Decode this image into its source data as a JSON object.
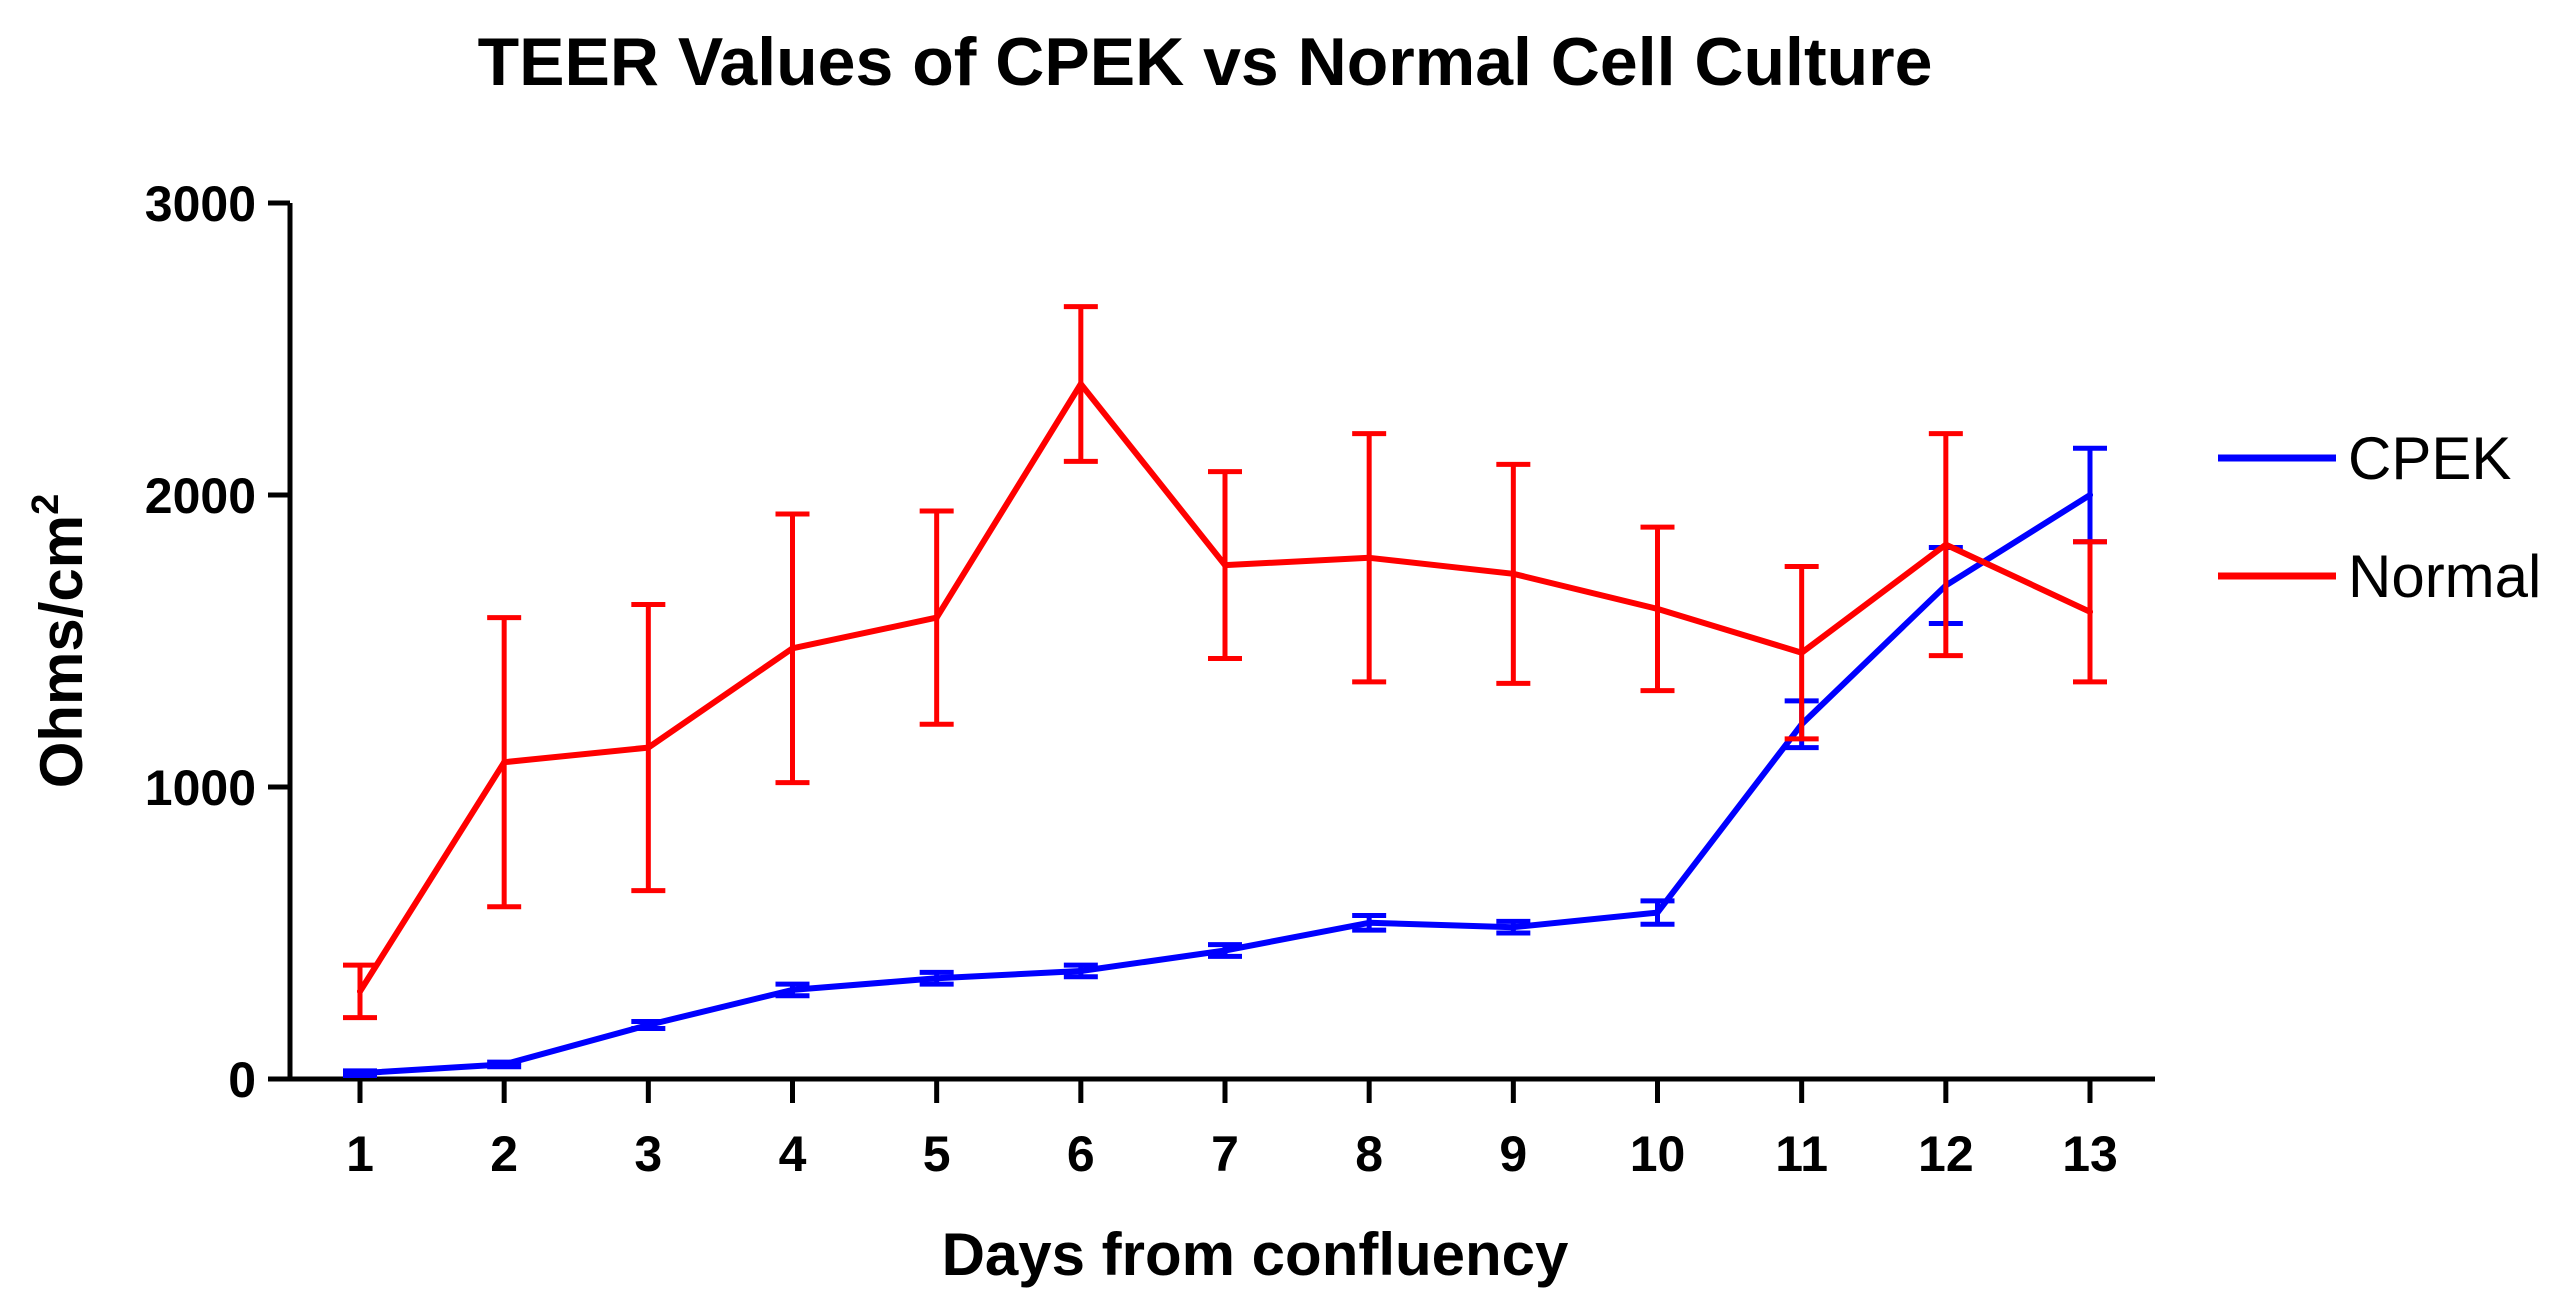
{
  "chart_data": {
    "type": "line",
    "title": "TEER Values of CPEK vs Normal Cell Culture",
    "xlabel": "Days from confluency",
    "ylabel": "Ohms/cm",
    "ylabel_superscript": "2",
    "x": [
      1,
      2,
      3,
      4,
      5,
      6,
      7,
      8,
      9,
      10,
      11,
      12,
      13
    ],
    "x_tick_labels": [
      "1",
      "2",
      "3",
      "4",
      "5",
      "6",
      "7",
      "8",
      "9",
      "10",
      "11",
      "12",
      "13"
    ],
    "ylim": [
      0,
      3000
    ],
    "y_ticks": [
      0,
      1000,
      2000,
      3000
    ],
    "y_tick_labels": [
      "0",
      "1000",
      "2000",
      "3000"
    ],
    "grid": false,
    "legend_position": "right",
    "series": [
      {
        "name": "CPEK",
        "color": "#0000ff",
        "values": [
          20,
          50,
          185,
          305,
          345,
          370,
          440,
          535,
          520,
          570,
          1215,
          1690,
          2000
        ],
        "error": [
          8,
          8,
          12,
          20,
          20,
          20,
          20,
          25,
          20,
          40,
          80,
          130,
          160
        ]
      },
      {
        "name": "Normal",
        "color": "#ff0000",
        "values": [
          300,
          1085,
          1135,
          1475,
          1580,
          2380,
          1760,
          1785,
          1730,
          1610,
          1460,
          1830,
          1600
        ],
        "error": [
          90,
          495,
          490,
          460,
          365,
          265,
          320,
          425,
          375,
          280,
          295,
          380,
          240
        ]
      }
    ]
  }
}
